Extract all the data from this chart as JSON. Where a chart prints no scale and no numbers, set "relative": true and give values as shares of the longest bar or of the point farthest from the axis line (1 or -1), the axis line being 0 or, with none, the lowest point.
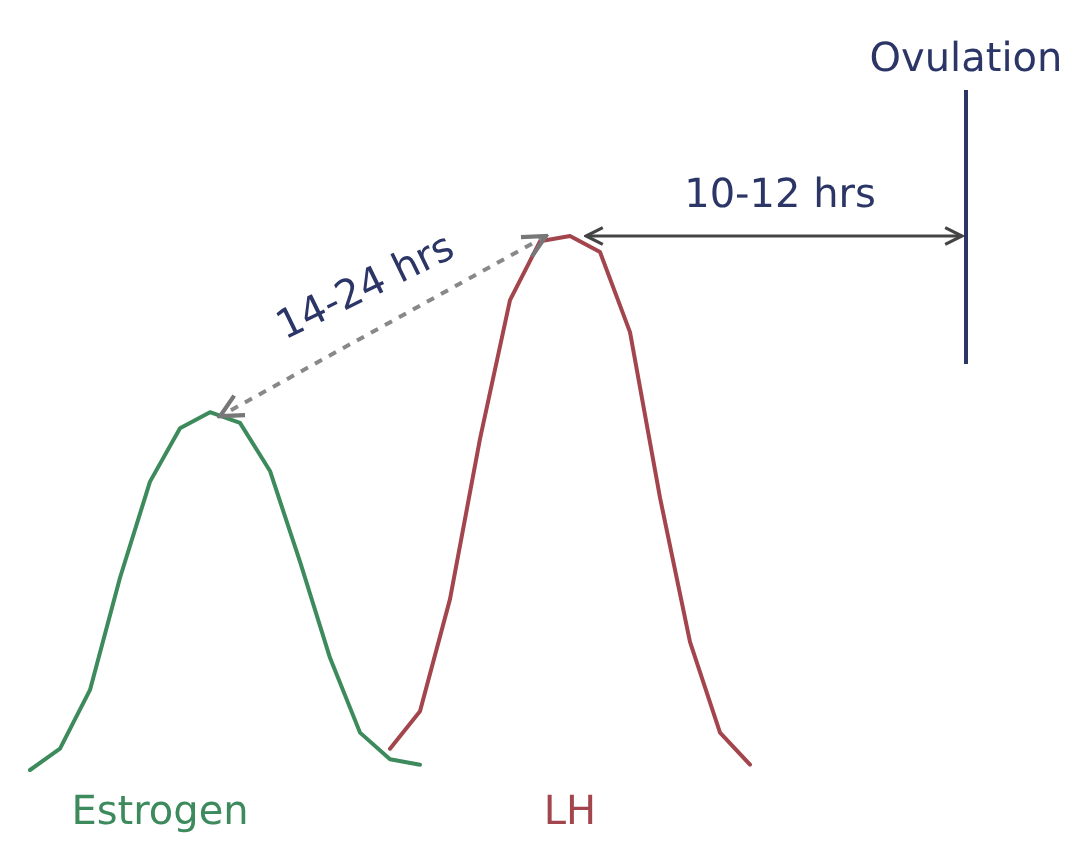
{
  "chart_data": {
    "type": "line",
    "relative": true,
    "categories": [
      null,
      null,
      null,
      null,
      null,
      null,
      null,
      null,
      null,
      null,
      null,
      null,
      null,
      null,
      null,
      null,
      null,
      null,
      null,
      null,
      null,
      null,
      null,
      null,
      null,
      null,
      null,
      null,
      null,
      null,
      null,
      null,
      null,
      null
    ],
    "series": [
      {
        "name": "Estrogen",
        "color": "#3d8a5c",
        "values": [
          0,
          0.04,
          0.15,
          0.36,
          0.54,
          0.64,
          0.67,
          0.65,
          0.56,
          0.39,
          0.21,
          0.07,
          0.02,
          0.01,
          null,
          null,
          null,
          null,
          null,
          null,
          null,
          null,
          null,
          null,
          null,
          null,
          null,
          null,
          null,
          null,
          null,
          null,
          null,
          null
        ]
      },
      {
        "name": "LH",
        "color": "#a3454c",
        "values": [
          null,
          null,
          null,
          null,
          null,
          null,
          null,
          null,
          null,
          null,
          null,
          null,
          0.04,
          0.11,
          0.32,
          0.62,
          0.88,
          0.99,
          1,
          0.97,
          0.82,
          0.51,
          0.24,
          0.07,
          0.01,
          null,
          null,
          null,
          null,
          null,
          null,
          null,
          null,
          null
        ]
      }
    ],
    "annotations": [
      "14-24 hrs",
      "10-12 hrs",
      "Ovulation"
    ]
  }
}
